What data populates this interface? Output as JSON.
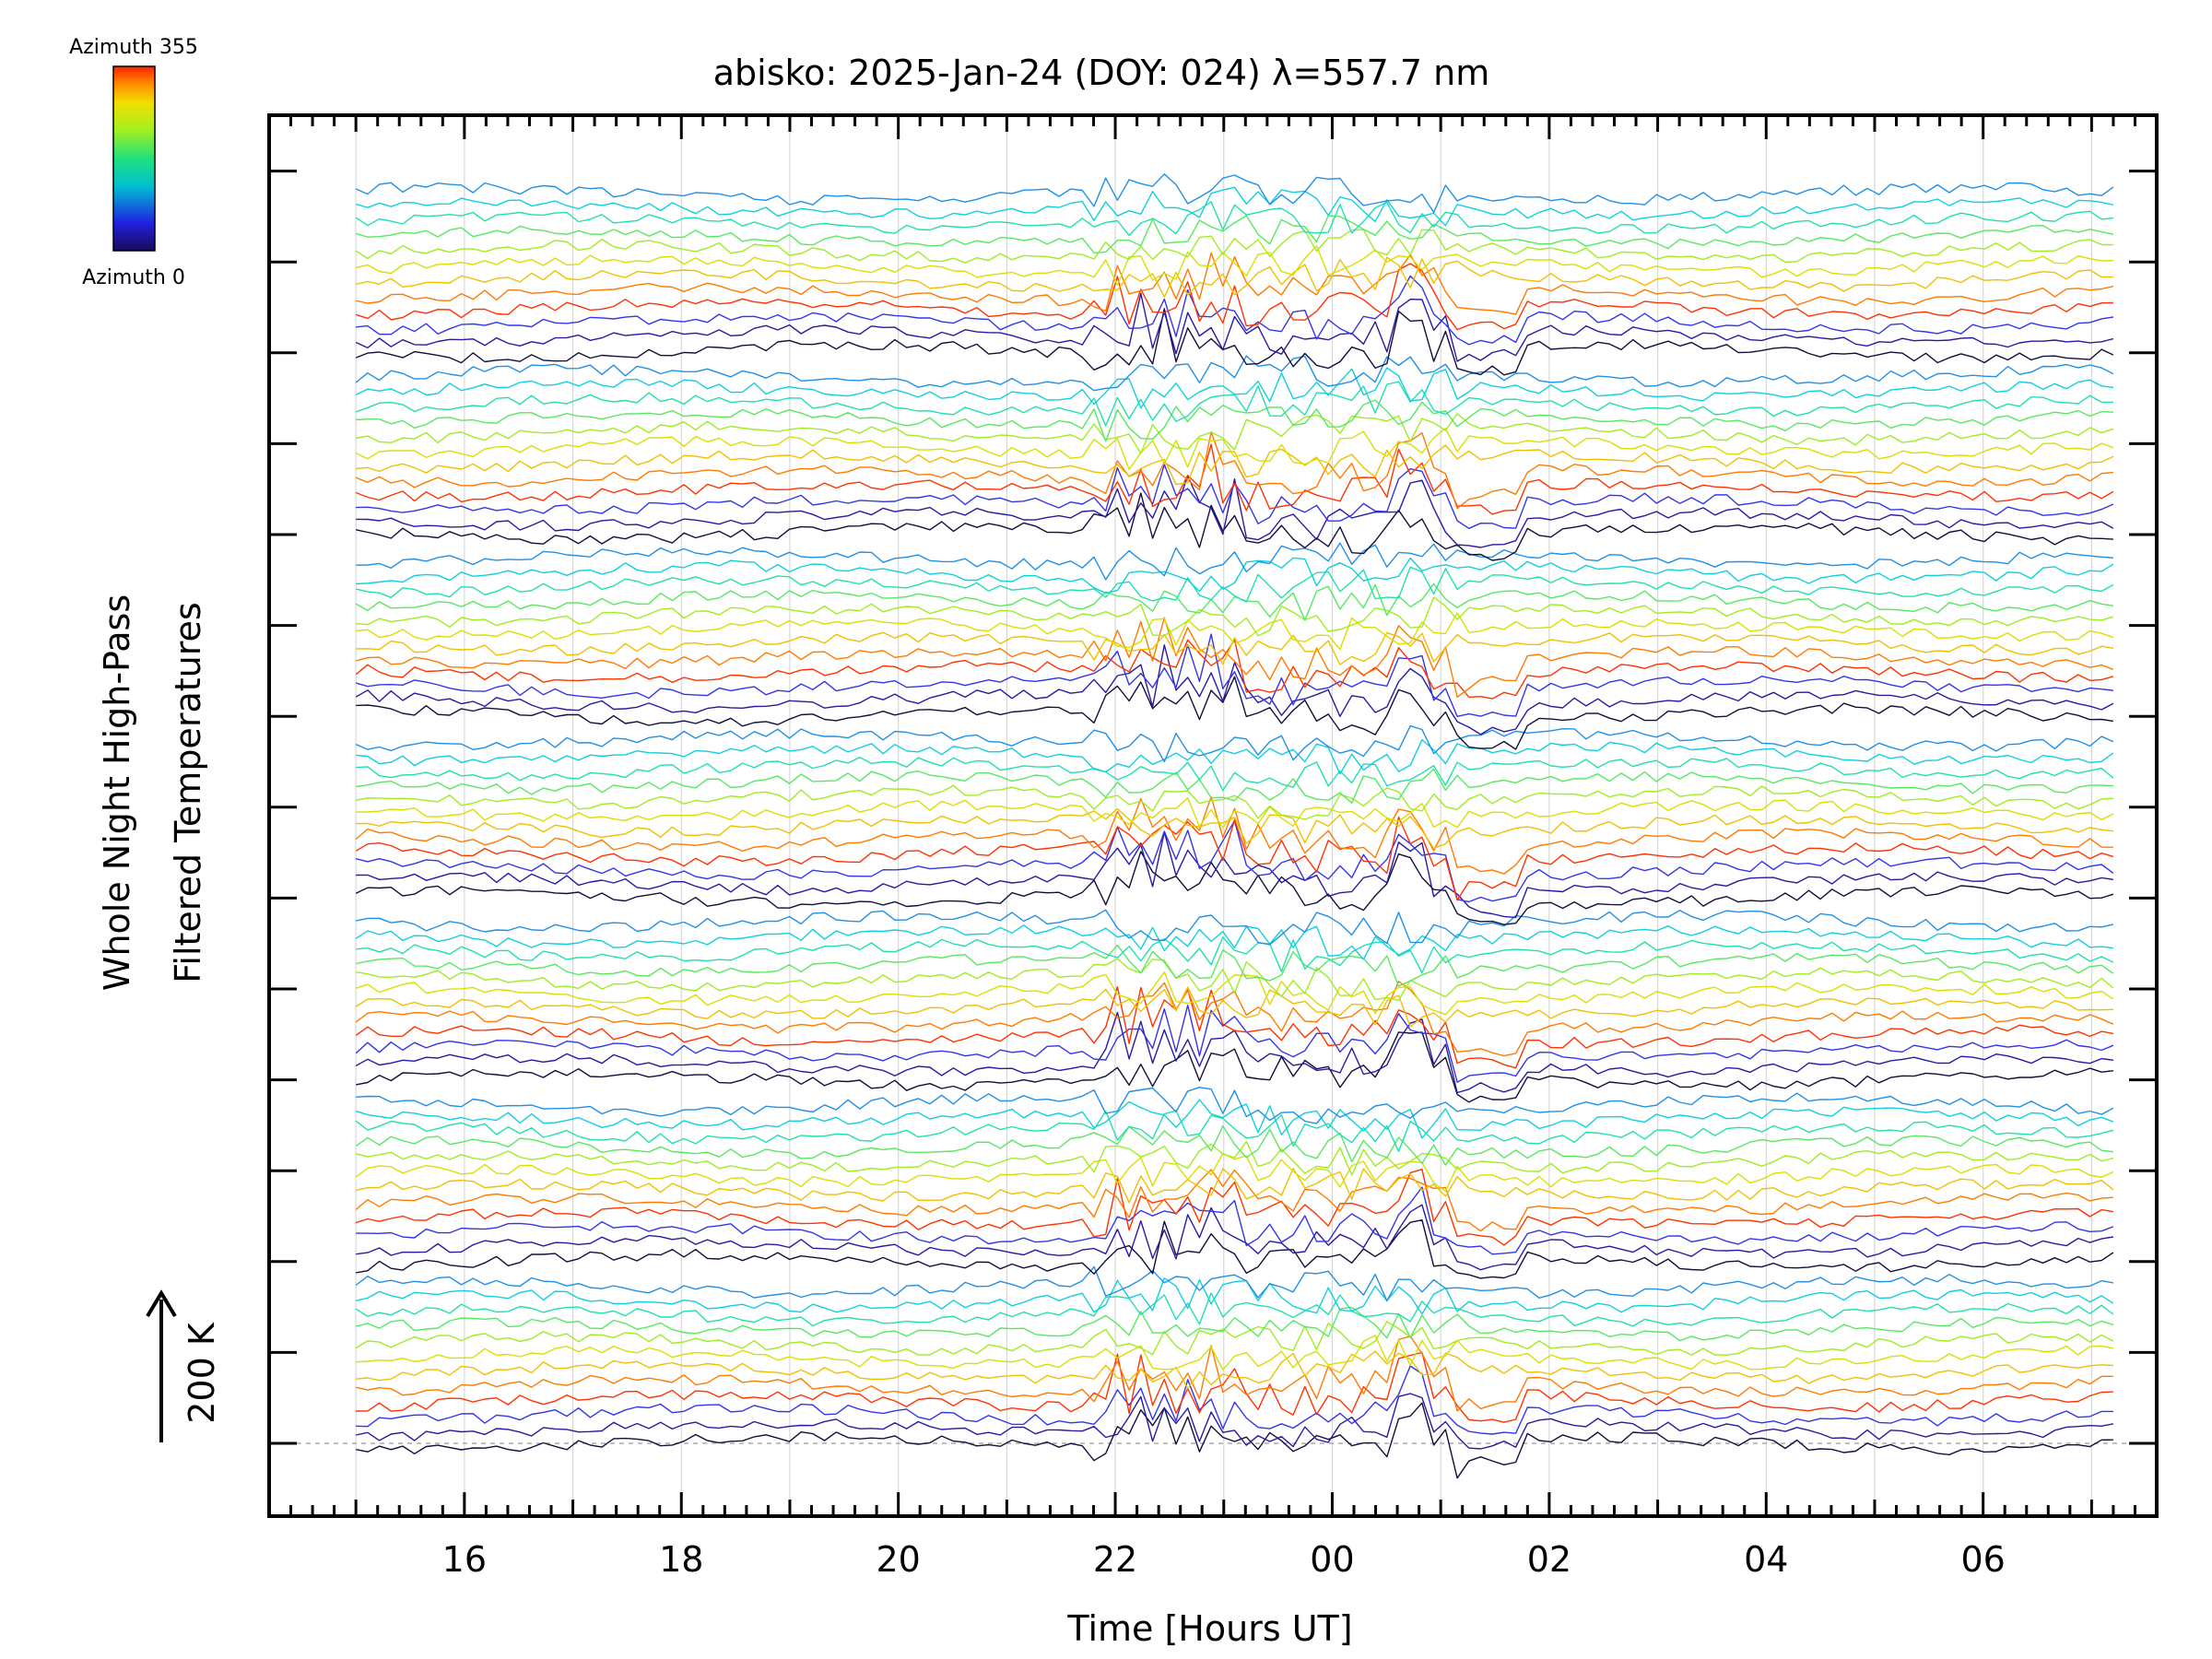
{
  "chart_data": {
    "type": "line",
    "title": "abisko: 2025-Jan-24 (DOY: 024) λ=557.7 nm",
    "xlabel": "Time [Hours UT]",
    "ylabel_line1": "Whole Night High-Pass",
    "ylabel_line2": "Filtered Temperatures",
    "scale_label": "200 K",
    "x_ticks": [
      "16",
      "18",
      "20",
      "22",
      "00",
      "02",
      "04",
      "06"
    ],
    "x_tick_hours": [
      16,
      18,
      20,
      22,
      24,
      26,
      28,
      30
    ],
    "xlim": [
      14.2,
      31.6
    ],
    "x_data_range": [
      15.0,
      31.2
    ],
    "y_scale_step_K": 200,
    "colorbar": {
      "top_label": "Azimuth 355",
      "bottom_label": "Azimuth 0",
      "azimuth_range": [
        0,
        355
      ]
    },
    "grid": true,
    "legend_position": "top-left",
    "series_groups": 7,
    "series_per_group": 12,
    "active_hours": [
      21.7,
      25.2
    ]
  }
}
